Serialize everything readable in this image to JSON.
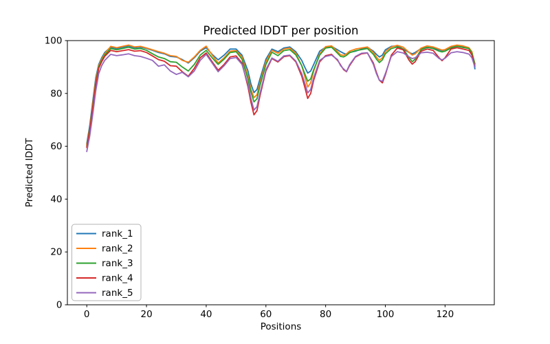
{
  "chart_data": {
    "type": "line",
    "title": "Predicted lDDT per position",
    "xlabel": "Positions",
    "ylabel": "Predicted lDDT",
    "xlim": [
      -6.5,
      136.5
    ],
    "ylim": [
      0,
      100
    ],
    "x_ticks": [
      0,
      20,
      40,
      60,
      80,
      100,
      120
    ],
    "y_ticks": [
      0,
      20,
      40,
      60,
      80,
      100
    ],
    "grid": false,
    "legend_position": "lower left",
    "background": "#ffffff",
    "x": [
      0,
      1,
      2,
      3,
      4,
      5,
      6,
      8,
      10,
      12,
      14,
      16,
      18,
      20,
      22,
      24,
      26,
      28,
      30,
      32,
      34,
      36,
      38,
      40,
      42,
      44,
      46,
      48,
      50,
      52,
      54,
      55,
      56,
      57,
      58,
      60,
      62,
      64,
      66,
      68,
      70,
      72,
      73,
      74,
      75,
      76,
      78,
      80,
      82,
      84,
      85,
      86,
      87,
      88,
      90,
      92,
      94,
      96,
      97,
      98,
      99,
      100,
      102,
      104,
      106,
      108,
      109,
      110,
      112,
      114,
      116,
      118,
      119,
      120,
      122,
      124,
      126,
      128,
      129,
      130
    ],
    "series": [
      {
        "name": "rank_1",
        "color": "#1f77b4",
        "values": [
          61,
          68,
          77,
          86,
          91,
          93.5,
          95.5,
          97.5,
          97,
          97.5,
          98,
          97.3,
          97.5,
          97,
          96.3,
          95.5,
          95,
          94,
          93.8,
          92.8,
          91.5,
          93.5,
          96,
          97.3,
          94.8,
          92.7,
          94.5,
          96.8,
          96.8,
          94.5,
          88.5,
          83.5,
          80.3,
          81.5,
          85.5,
          93,
          96.8,
          95.8,
          97.2,
          97.6,
          95.8,
          92.5,
          90,
          87.7,
          88.5,
          91,
          96,
          97.5,
          97.8,
          96.5,
          95.8,
          95.2,
          94.8,
          95.5,
          96,
          96.8,
          97.5,
          96,
          94.8,
          93.8,
          94.5,
          96.5,
          97.8,
          98,
          96.8,
          95.5,
          95,
          95.5,
          97,
          97.5,
          97.2,
          96.5,
          96.2,
          96.5,
          97.5,
          98,
          97.6,
          97,
          95.5,
          89.3
        ]
      },
      {
        "name": "rank_2",
        "color": "#ff7f0e",
        "values": [
          60.5,
          67,
          76,
          85,
          90.5,
          93,
          95,
          97.8,
          97.3,
          97.8,
          98.3,
          97.6,
          97.8,
          97.2,
          96.5,
          95.8,
          95.2,
          94.3,
          94,
          92.5,
          91.8,
          93.8,
          96.3,
          97.9,
          94.5,
          91.5,
          93.5,
          96,
          96.2,
          93.8,
          86.5,
          81.5,
          78.4,
          79.5,
          84,
          92,
          96.3,
          95.2,
          96.8,
          97.2,
          95.2,
          90.5,
          86.5,
          82.4,
          84,
          88.5,
          95,
          97.7,
          98,
          95.8,
          94.6,
          94.4,
          95,
          96,
          96.8,
          97.2,
          97.6,
          95.5,
          93.8,
          92.5,
          93.5,
          95.8,
          97.6,
          98.2,
          97.5,
          95.5,
          94.5,
          95,
          97.2,
          98,
          97.6,
          96.8,
          96.4,
          96.6,
          97.8,
          98.3,
          98,
          97.3,
          95.8,
          90.8
        ]
      },
      {
        "name": "rank_3",
        "color": "#2ca02c",
        "values": [
          60,
          66.5,
          75,
          84,
          90,
          92.5,
          94.5,
          97,
          96.5,
          97,
          97.5,
          96.8,
          97,
          96.3,
          95,
          93.8,
          93.2,
          92,
          91.8,
          90,
          88.5,
          91,
          94.5,
          96.3,
          93.5,
          91,
          93,
          95.5,
          95.8,
          93,
          85.5,
          80.5,
          76.8,
          78,
          83,
          91,
          95.6,
          94.3,
          96.2,
          96.6,
          94.6,
          90.5,
          87.5,
          84.6,
          85.5,
          89,
          94.5,
          97.2,
          97.5,
          95.2,
          94,
          93.8,
          94.4,
          95.4,
          96.2,
          96.6,
          97,
          94.8,
          93,
          91.7,
          92.7,
          95,
          97,
          97.6,
          96.8,
          93.5,
          92,
          93,
          96.6,
          97.4,
          97,
          96,
          95.7,
          96,
          97.2,
          97.8,
          97.4,
          97,
          95.3,
          91.2
        ]
      },
      {
        "name": "rank_4",
        "color": "#d62728",
        "values": [
          59.5,
          66,
          74.5,
          83.5,
          89.5,
          92,
          94,
          96.3,
          95.8,
          96.2,
          96.6,
          96,
          96.2,
          95.5,
          94.2,
          92.8,
          92.2,
          90.5,
          90.3,
          88.2,
          86.5,
          89.5,
          93.5,
          95.3,
          92,
          88.8,
          91,
          93.8,
          94.2,
          91.5,
          82.5,
          76.5,
          71.9,
          73.5,
          79,
          88.5,
          93.2,
          91.9,
          93.9,
          94.3,
          92,
          86.5,
          82.5,
          78.1,
          80,
          85,
          92,
          94.3,
          94.8,
          92.5,
          90.8,
          89,
          88.2,
          90.5,
          93.8,
          95,
          95.3,
          91.5,
          88,
          85,
          84,
          87,
          94.5,
          97.2,
          96.5,
          92.5,
          91.1,
          92,
          96,
          96.8,
          96.3,
          93.5,
          92.4,
          93.5,
          96.8,
          97.3,
          96.8,
          96.3,
          94.5,
          90.3
        ]
      },
      {
        "name": "rank_5",
        "color": "#9467bd",
        "values": [
          58,
          64,
          72,
          81,
          87.5,
          90.5,
          92.5,
          94.8,
          94.3,
          94.6,
          95,
          94.3,
          94,
          93.3,
          92.5,
          90.3,
          90.8,
          88.5,
          87.2,
          88,
          86.3,
          88.5,
          92.5,
          94.8,
          91.5,
          88.2,
          90.5,
          93.2,
          93.6,
          91,
          83.5,
          78,
          73.7,
          75,
          80,
          89,
          93.4,
          92.2,
          94.2,
          94.5,
          92.3,
          87.5,
          84,
          80.2,
          81.5,
          86,
          92.5,
          94,
          94.5,
          92.8,
          90.5,
          89.3,
          88.3,
          90.8,
          94,
          95.2,
          95.4,
          91,
          87.5,
          85,
          84.6,
          87.5,
          94,
          95.8,
          95.3,
          93.8,
          93.2,
          93.5,
          95.4,
          95.6,
          95.2,
          93.2,
          92.7,
          93.3,
          95.4,
          95.8,
          95.5,
          94.9,
          93.5,
          90
        ]
      }
    ]
  }
}
